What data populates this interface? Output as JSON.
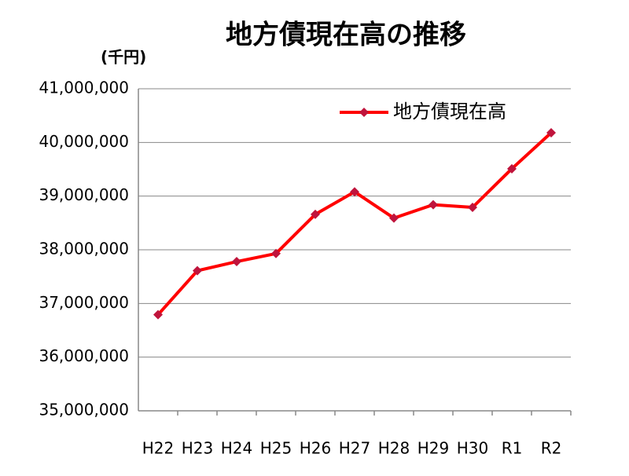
{
  "chart_data": {
    "type": "line",
    "title": "地方債現在高の推移",
    "unit_label": "(千円)",
    "categories": [
      "H22",
      "H23",
      "H24",
      "H25",
      "H26",
      "H27",
      "H28",
      "H29",
      "H30",
      "R1",
      "R2"
    ],
    "series": [
      {
        "name": "地方債現在高",
        "color": "#ff0000",
        "marker_color": "#c0143c",
        "values": [
          36790000,
          37610000,
          37780000,
          37930000,
          38660000,
          39080000,
          38590000,
          38840000,
          38790000,
          39510000,
          40180000
        ]
      }
    ],
    "ylim": [
      35000000,
      41000000
    ],
    "yticks": [
      {
        "value": 35000000,
        "label": "35,000,000"
      },
      {
        "value": 36000000,
        "label": "36,000,000"
      },
      {
        "value": 37000000,
        "label": "37,000,000"
      },
      {
        "value": 38000000,
        "label": "38,000,000"
      },
      {
        "value": 39000000,
        "label": "39,000,000"
      },
      {
        "value": 40000000,
        "label": "40,000,000"
      },
      {
        "value": 41000000,
        "label": "41,000,000"
      }
    ],
    "grid": true,
    "legend": "top-right"
  }
}
